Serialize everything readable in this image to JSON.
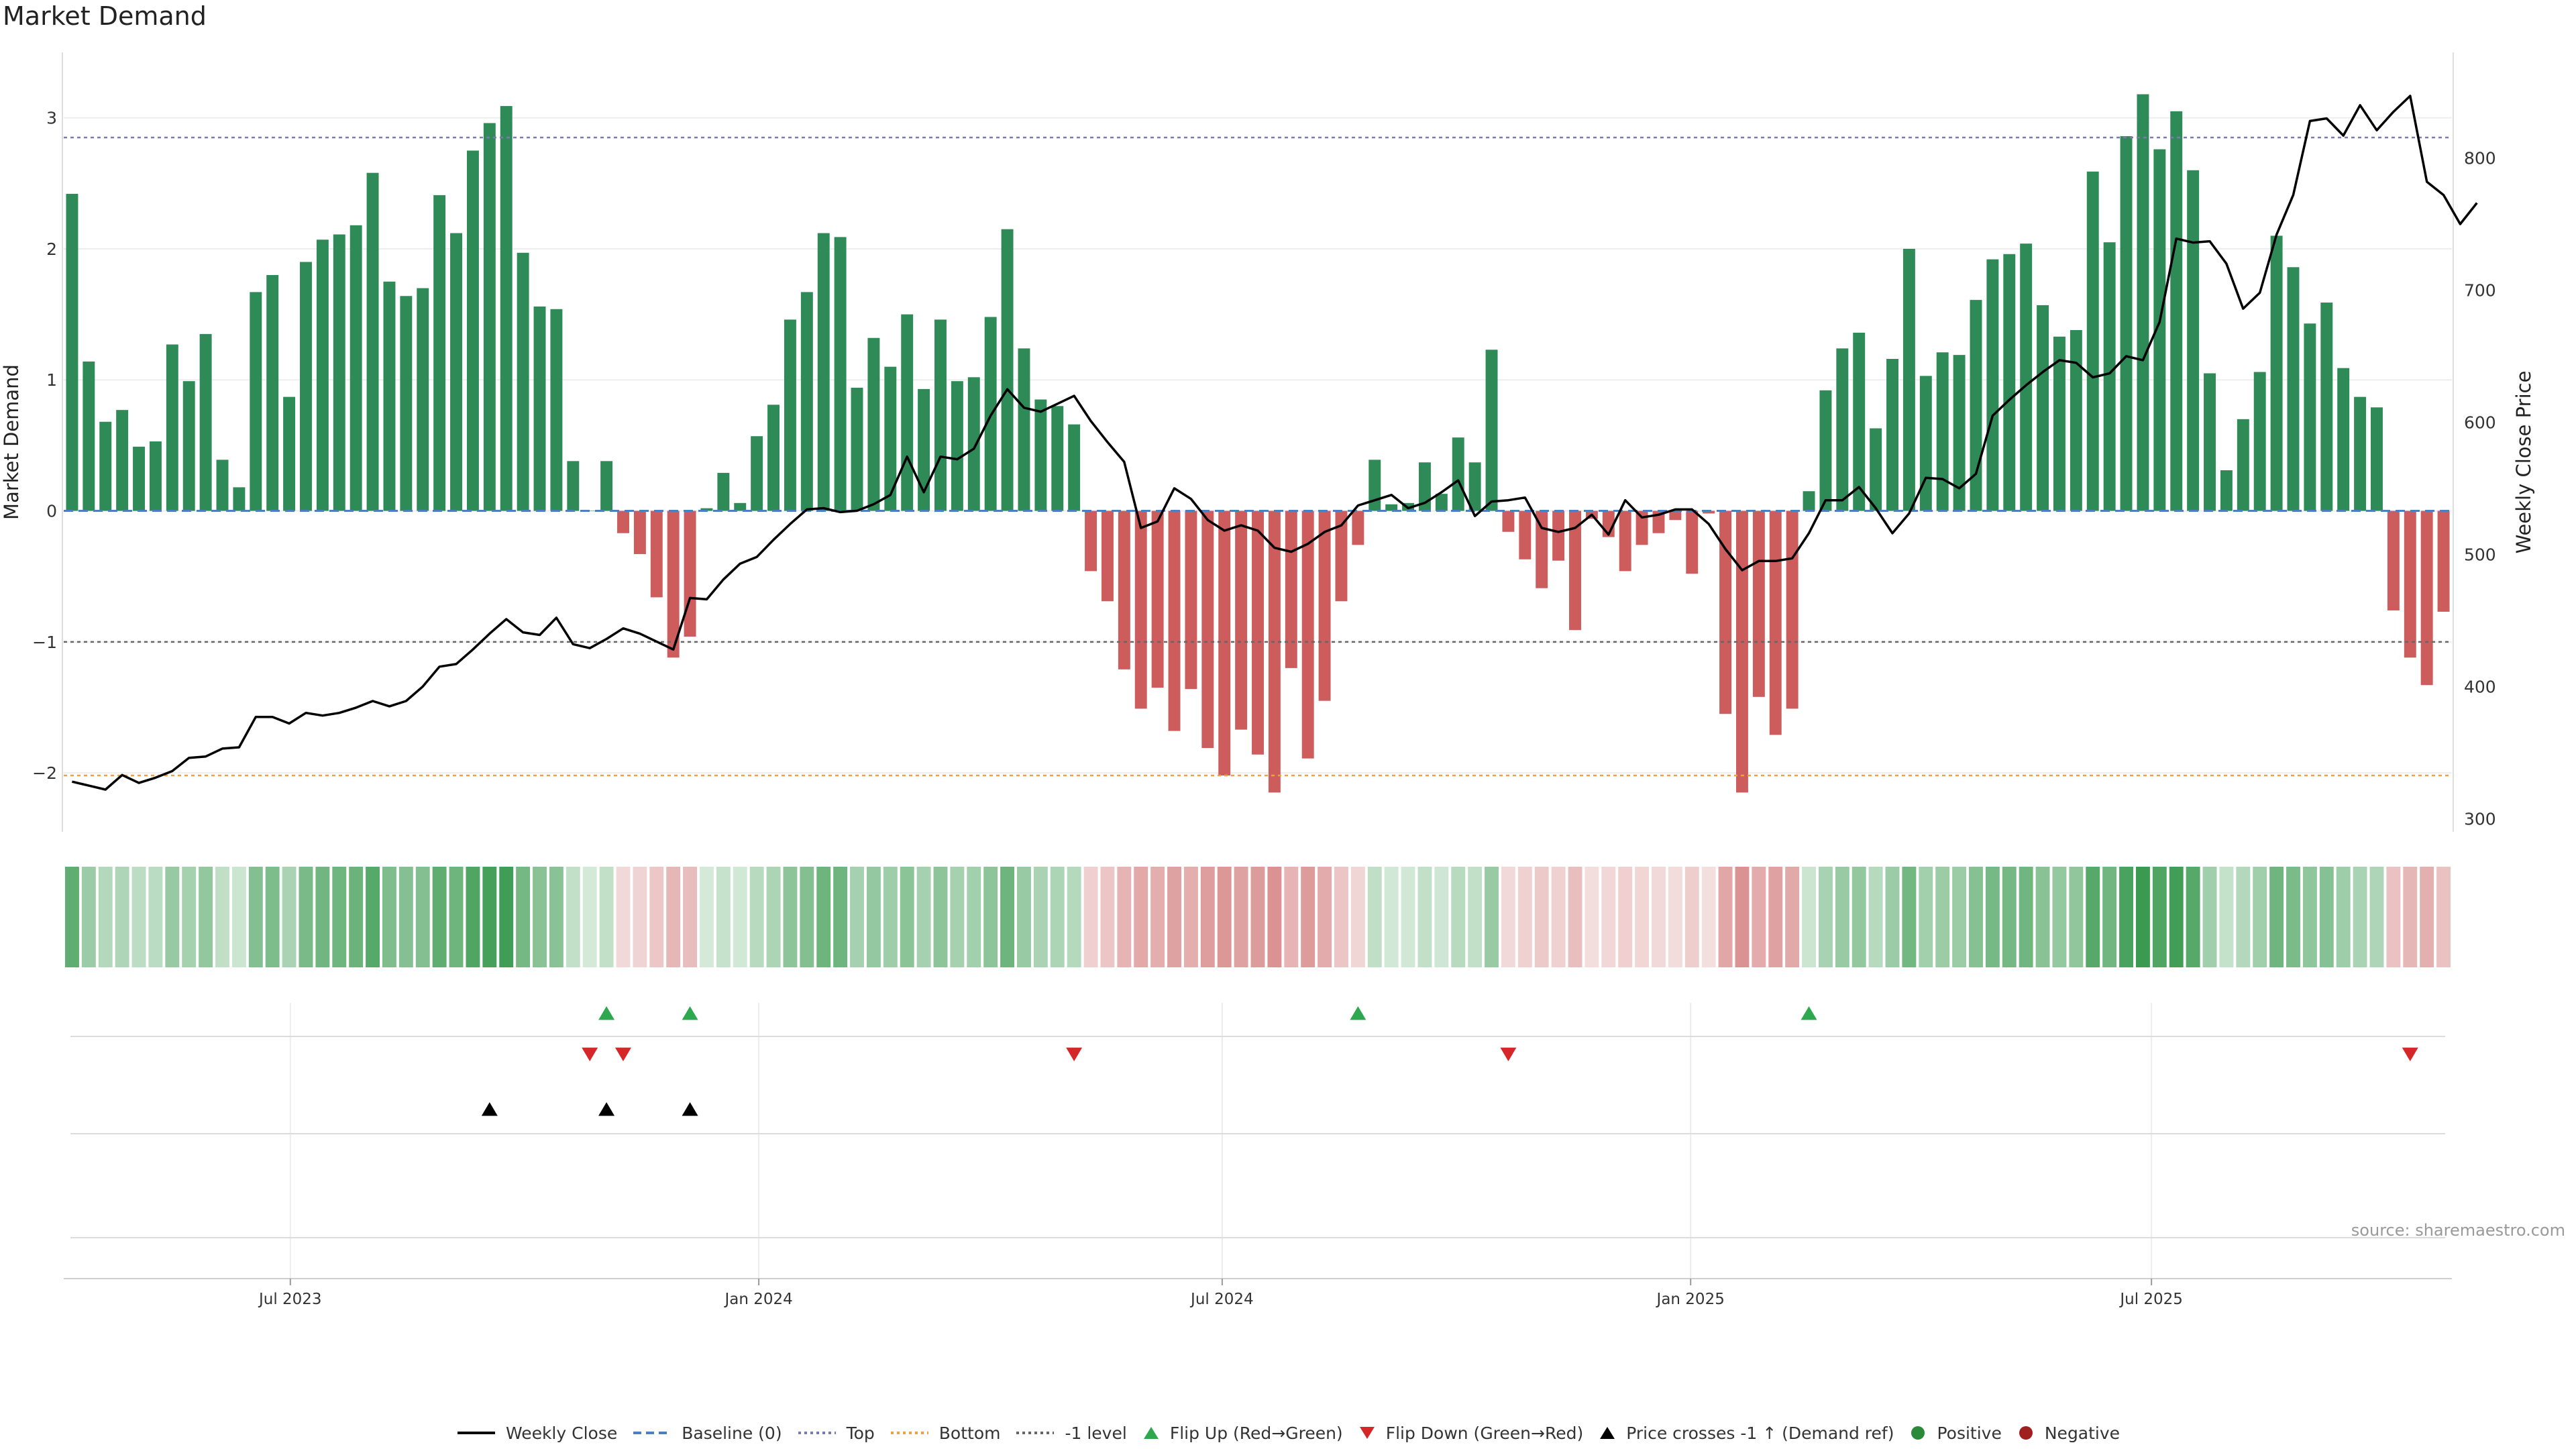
{
  "chart_data": {
    "type": "bar+line",
    "title": "Market Demand",
    "ylabel_left": "Market Demand",
    "ylabel_right": "Weekly Close Price",
    "ylim_left": [
      -2.45,
      3.5
    ],
    "ylim_right": [
      290,
      880
    ],
    "yticks_left": [
      -2,
      -1,
      0,
      1,
      2,
      3
    ],
    "ytick_labels_left": [
      "−2",
      "−1",
      "0",
      "1",
      "2",
      "3"
    ],
    "yticks_right": [
      300,
      400,
      500,
      600,
      700,
      800
    ],
    "ytick_labels_right": [
      "300",
      "400",
      "500",
      "600",
      "700",
      "800"
    ],
    "x_start_date": "2023-04-03",
    "x_end_date": "2025-10-27",
    "x_ticks": [
      {
        "date": "2023-07-01",
        "label": "Jul 2023"
      },
      {
        "date": "2024-01-01",
        "label": "Jan 2024"
      },
      {
        "date": "2024-07-01",
        "label": "Jul 2024"
      },
      {
        "date": "2025-01-01",
        "label": "Jan 2025"
      },
      {
        "date": "2025-07-01",
        "label": "Jul 2025"
      }
    ],
    "reference_lines": [
      {
        "name": "Top",
        "value": 2.85,
        "color": "#7b7bb0",
        "style": "dotted"
      },
      {
        "name": "Bottom",
        "value": -2.02,
        "color": "#f0a040",
        "style": "dotted"
      },
      {
        "name": "-1 level",
        "value": -1.0,
        "color": "#666666",
        "style": "dotted"
      },
      {
        "name": "Baseline (0)",
        "value": 0,
        "color": "#4a7fc0",
        "style": "dashed"
      }
    ],
    "demand": [
      2.42,
      1.14,
      0.68,
      0.77,
      0.49,
      0.53,
      1.27,
      0.99,
      1.35,
      0.39,
      0.18,
      1.67,
      1.8,
      0.87,
      1.9,
      2.07,
      2.11,
      2.18,
      2.58,
      1.75,
      1.64,
      1.7,
      2.41,
      2.12,
      2.75,
      2.96,
      3.09,
      1.97,
      1.56,
      1.54,
      0.38,
      0.0,
      0.38,
      -0.17,
      -0.33,
      -0.66,
      -1.12,
      -0.96,
      0.02,
      0.29,
      0.06,
      0.57,
      0.81,
      1.46,
      1.67,
      2.12,
      2.09,
      0.94,
      1.32,
      1.1,
      1.5,
      0.93,
      1.46,
      0.99,
      1.02,
      1.48,
      2.15,
      1.24,
      0.85,
      0.8,
      0.66,
      -0.46,
      -0.69,
      -1.21,
      -1.51,
      -1.35,
      -1.68,
      -1.36,
      -1.81,
      -2.02,
      -1.67,
      -1.86,
      -2.15,
      -1.2,
      -1.89,
      -1.45,
      -0.69,
      -0.26,
      0.39,
      0.05,
      0.06,
      0.37,
      0.13,
      0.56,
      0.37,
      1.23,
      -0.16,
      -0.37,
      -0.59,
      -0.38,
      -0.91,
      -0.06,
      -0.2,
      -0.46,
      -0.26,
      -0.17,
      -0.07,
      -0.48,
      -0.02,
      -1.55,
      -2.15,
      -1.42,
      -1.71,
      -1.51,
      0.15,
      0.92,
      1.24,
      1.36,
      0.63,
      1.16,
      2.0,
      1.03,
      1.21,
      1.19,
      1.61,
      1.92,
      1.96,
      2.04,
      1.57,
      1.33,
      1.38,
      2.59,
      2.05,
      2.86,
      3.18,
      2.76,
      3.05,
      2.6,
      1.05,
      0.31,
      0.7,
      1.06,
      2.1,
      1.86,
      1.43,
      1.59,
      1.09,
      0.87,
      0.79,
      -0.76,
      -1.12,
      -1.33,
      -0.77
    ],
    "weekly_close": [
      328,
      325,
      322,
      333,
      327,
      331,
      336,
      346,
      347,
      353,
      354,
      377,
      377,
      372,
      380,
      378,
      380,
      384,
      389,
      385,
      389,
      400,
      415,
      417,
      428,
      440,
      451,
      441,
      439,
      452,
      432,
      429,
      436,
      444,
      440,
      434,
      428,
      467,
      466,
      481,
      493,
      498,
      511,
      523,
      534,
      535,
      532,
      533,
      538,
      545,
      574,
      547,
      574,
      572,
      580,
      605,
      625,
      611,
      608,
      614,
      620,
      601,
      585,
      570,
      520,
      525,
      550,
      542,
      526,
      518,
      522,
      518,
      505,
      502,
      508,
      517,
      522,
      537,
      541,
      545,
      535,
      539,
      547,
      556,
      529,
      540,
      541,
      543,
      520,
      517,
      520,
      530,
      515,
      541,
      528,
      530,
      534,
      534,
      523,
      504,
      488,
      495,
      495,
      497,
      516,
      541,
      541,
      551,
      535,
      516,
      531,
      558,
      557,
      550,
      561,
      605,
      617,
      628,
      638,
      647,
      645,
      634,
      637,
      650,
      647,
      676,
      739,
      736,
      737,
      720,
      686,
      698,
      742,
      772,
      828,
      830,
      817,
      840,
      821,
      835,
      847,
      782,
      772,
      750,
      766
    ],
    "flip_up_indices": [
      32,
      37,
      77,
      104
    ],
    "flip_down_indices": [
      31,
      33,
      60,
      86,
      140
    ],
    "price_cross_indices": [
      25,
      32,
      37
    ],
    "bar_colors": {
      "positive": "#2e8b57",
      "negative": "#cd5c5c",
      "heatmap_pos": "#3a9a4f",
      "heatmap_neg": "#cd6c6c"
    },
    "legend": [
      {
        "label": "Weekly Close",
        "kind": "line",
        "color": "#000000"
      },
      {
        "label": "Baseline (0)",
        "kind": "dashed",
        "color": "#4a7fc0"
      },
      {
        "label": "Top",
        "kind": "dotted",
        "color": "#7b7bb0"
      },
      {
        "label": "Bottom",
        "kind": "dotted",
        "color": "#f0a040"
      },
      {
        "label": "-1 level",
        "kind": "dotted",
        "color": "#666666"
      },
      {
        "label": "Flip Up (Red→Green)",
        "kind": "tri-up",
        "color": "#2ea84f"
      },
      {
        "label": "Flip Down (Green→Red)",
        "kind": "tri-down",
        "color": "#d62728"
      },
      {
        "label": "Price crosses -1 ↑ (Demand ref)",
        "kind": "tri-up",
        "color": "#000000"
      },
      {
        "label": "Positive",
        "kind": "dot",
        "color": "#2a8a3a"
      },
      {
        "label": "Negative",
        "kind": "dot",
        "color": "#a02020"
      }
    ],
    "source": "source: sharemaestro.com"
  }
}
